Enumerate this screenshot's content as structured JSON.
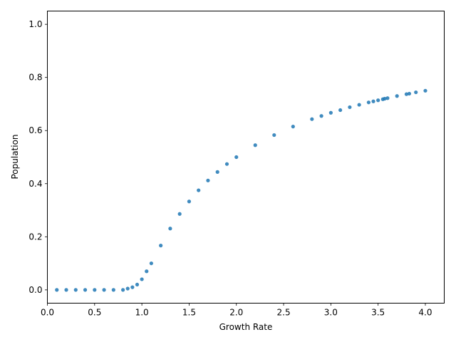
{
  "chart_data": {
    "type": "scatter",
    "title": "",
    "xlabel": "Growth Rate",
    "ylabel": "Population",
    "xlim": [
      -0.0,
      4.2
    ],
    "ylim": [
      -0.05,
      1.05
    ],
    "x_ticks": [
      0.0,
      0.5,
      1.0,
      1.5,
      2.0,
      2.5,
      3.0,
      3.5,
      4.0
    ],
    "x_tick_labels": [
      "0.0",
      "0.5",
      "1.0",
      "1.5",
      "2.0",
      "2.5",
      "3.0",
      "3.5",
      "4.0"
    ],
    "y_ticks": [
      0.0,
      0.2,
      0.4,
      0.6,
      0.8,
      1.0
    ],
    "y_tick_labels": [
      "0.0",
      "0.2",
      "0.4",
      "0.6",
      "0.8",
      "1.0"
    ],
    "grid": false,
    "color": "#1f77b4",
    "series": [
      {
        "description": "Population values plotted against growth rate",
        "x": [
          0.1,
          0.2,
          0.3,
          0.4,
          0.5,
          0.6,
          0.7,
          0.8,
          0.85,
          0.9,
          0.95,
          1.0,
          1.05,
          1.1,
          1.2,
          1.3,
          1.4,
          1.5,
          1.6,
          1.7,
          1.8,
          1.9,
          2.0,
          2.2,
          2.4,
          2.6,
          2.8,
          2.9,
          3.0,
          3.1,
          3.2,
          3.3,
          3.4,
          3.45,
          3.5,
          3.55,
          3.57,
          3.6,
          3.7,
          3.8,
          3.83,
          3.9,
          4.0
        ],
        "y": [
          0.0,
          0.0,
          0.0,
          0.0,
          0.0,
          0.0,
          0.0,
          0.0,
          0.005,
          0.01,
          0.02,
          0.04,
          0.07,
          0.1,
          0.167,
          0.231,
          0.286,
          0.333,
          0.375,
          0.412,
          0.444,
          0.474,
          0.5,
          0.545,
          0.583,
          0.615,
          0.643,
          0.655,
          0.667,
          0.677,
          0.688,
          0.697,
          0.706,
          0.71,
          0.714,
          0.718,
          0.72,
          0.722,
          0.73,
          0.737,
          0.739,
          0.744,
          0.75
        ]
      }
    ]
  }
}
